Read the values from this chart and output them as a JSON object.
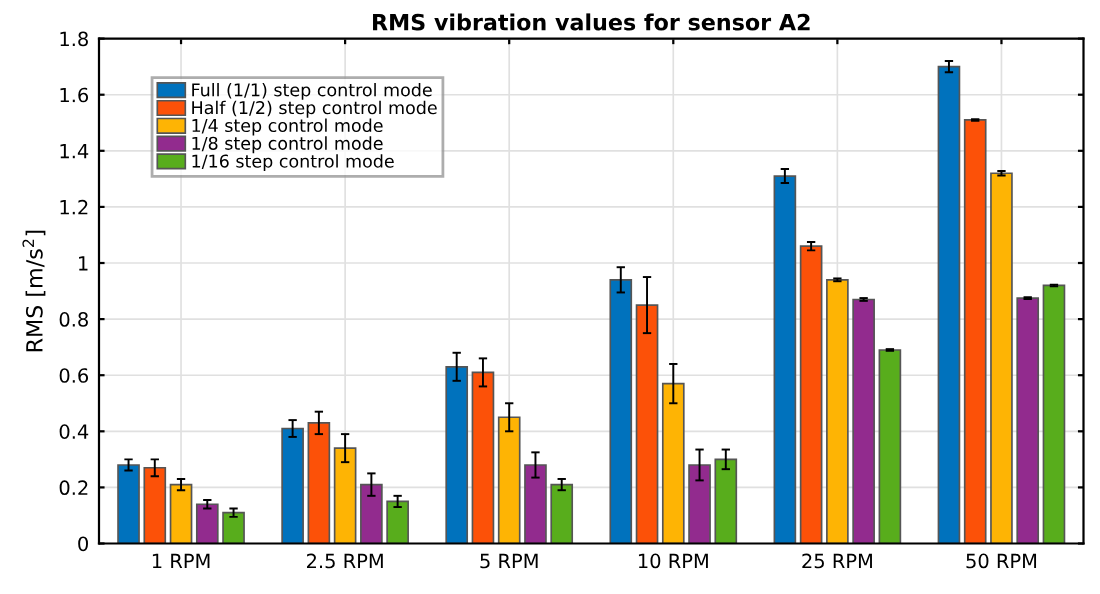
{
  "chart_data": {
    "type": "bar",
    "title": "RMS vibration values for sensor A2",
    "ylabel": "RMS [m/s$^{2}$]",
    "categories": [
      "1 RPM",
      "2.5 RPM",
      "5 RPM",
      "10 RPM",
      "25 RPM",
      "50 RPM"
    ],
    "series": [
      {
        "name": "Full (1/1) step control mode",
        "color": "#0072bd",
        "values": [
          0.28,
          0.41,
          0.63,
          0.94,
          1.31,
          1.7
        ],
        "errors": [
          0.02,
          0.03,
          0.05,
          0.045,
          0.025,
          0.02
        ]
      },
      {
        "name": "Half (1/2) step control mode",
        "color": "#fc5108",
        "values": [
          0.27,
          0.43,
          0.61,
          0.85,
          1.06,
          1.51
        ],
        "errors": [
          0.03,
          0.04,
          0.05,
          0.1,
          0.015,
          0.003
        ]
      },
      {
        "name": "1/4 step control mode",
        "color": "#feb404",
        "values": [
          0.21,
          0.34,
          0.45,
          0.57,
          0.94,
          1.32
        ],
        "errors": [
          0.02,
          0.05,
          0.05,
          0.07,
          0.005,
          0.008
        ]
      },
      {
        "name": "1/8 step control mode",
        "color": "#922b8e",
        "values": [
          0.14,
          0.21,
          0.28,
          0.28,
          0.87,
          0.875
        ],
        "errors": [
          0.015,
          0.04,
          0.045,
          0.055,
          0.005,
          0.003
        ]
      },
      {
        "name": "1/16 step control mode",
        "color": "#58ad1c",
        "values": [
          0.11,
          0.15,
          0.21,
          0.3,
          0.69,
          0.92
        ],
        "errors": [
          0.015,
          0.02,
          0.02,
          0.035,
          0.003,
          0.003
        ]
      }
    ],
    "ylim": [
      0,
      1.8
    ],
    "yticks": [
      0,
      0.2,
      0.4,
      0.6,
      0.8,
      1,
      1.2,
      1.4,
      1.6,
      1.8
    ],
    "grid": true,
    "legend": "top left"
  }
}
